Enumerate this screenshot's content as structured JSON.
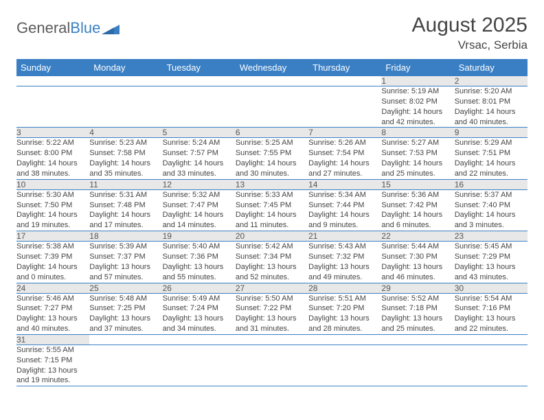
{
  "brand": {
    "part1": "General",
    "part2": "Blue"
  },
  "title": "August 2025",
  "location": "Vrsac, Serbia",
  "colors": {
    "accent": "#3a7fc4",
    "headerText": "#ffffff",
    "dayBg": "#e8e8e8",
    "text": "#444"
  },
  "weekdays": [
    "Sunday",
    "Monday",
    "Tuesday",
    "Wednesday",
    "Thursday",
    "Friday",
    "Saturday"
  ],
  "weeks": [
    [
      null,
      null,
      null,
      null,
      null,
      {
        "n": "1",
        "sr": "5:19 AM",
        "ss": "8:02 PM",
        "dl": "14 hours and 42 minutes."
      },
      {
        "n": "2",
        "sr": "5:20 AM",
        "ss": "8:01 PM",
        "dl": "14 hours and 40 minutes."
      }
    ],
    [
      {
        "n": "3",
        "sr": "5:22 AM",
        "ss": "8:00 PM",
        "dl": "14 hours and 38 minutes."
      },
      {
        "n": "4",
        "sr": "5:23 AM",
        "ss": "7:58 PM",
        "dl": "14 hours and 35 minutes."
      },
      {
        "n": "5",
        "sr": "5:24 AM",
        "ss": "7:57 PM",
        "dl": "14 hours and 33 minutes."
      },
      {
        "n": "6",
        "sr": "5:25 AM",
        "ss": "7:55 PM",
        "dl": "14 hours and 30 minutes."
      },
      {
        "n": "7",
        "sr": "5:26 AM",
        "ss": "7:54 PM",
        "dl": "14 hours and 27 minutes."
      },
      {
        "n": "8",
        "sr": "5:27 AM",
        "ss": "7:53 PM",
        "dl": "14 hours and 25 minutes."
      },
      {
        "n": "9",
        "sr": "5:29 AM",
        "ss": "7:51 PM",
        "dl": "14 hours and 22 minutes."
      }
    ],
    [
      {
        "n": "10",
        "sr": "5:30 AM",
        "ss": "7:50 PM",
        "dl": "14 hours and 19 minutes."
      },
      {
        "n": "11",
        "sr": "5:31 AM",
        "ss": "7:48 PM",
        "dl": "14 hours and 17 minutes."
      },
      {
        "n": "12",
        "sr": "5:32 AM",
        "ss": "7:47 PM",
        "dl": "14 hours and 14 minutes."
      },
      {
        "n": "13",
        "sr": "5:33 AM",
        "ss": "7:45 PM",
        "dl": "14 hours and 11 minutes."
      },
      {
        "n": "14",
        "sr": "5:34 AM",
        "ss": "7:44 PM",
        "dl": "14 hours and 9 minutes."
      },
      {
        "n": "15",
        "sr": "5:36 AM",
        "ss": "7:42 PM",
        "dl": "14 hours and 6 minutes."
      },
      {
        "n": "16",
        "sr": "5:37 AM",
        "ss": "7:40 PM",
        "dl": "14 hours and 3 minutes."
      }
    ],
    [
      {
        "n": "17",
        "sr": "5:38 AM",
        "ss": "7:39 PM",
        "dl": "14 hours and 0 minutes."
      },
      {
        "n": "18",
        "sr": "5:39 AM",
        "ss": "7:37 PM",
        "dl": "13 hours and 57 minutes."
      },
      {
        "n": "19",
        "sr": "5:40 AM",
        "ss": "7:36 PM",
        "dl": "13 hours and 55 minutes."
      },
      {
        "n": "20",
        "sr": "5:42 AM",
        "ss": "7:34 PM",
        "dl": "13 hours and 52 minutes."
      },
      {
        "n": "21",
        "sr": "5:43 AM",
        "ss": "7:32 PM",
        "dl": "13 hours and 49 minutes."
      },
      {
        "n": "22",
        "sr": "5:44 AM",
        "ss": "7:30 PM",
        "dl": "13 hours and 46 minutes."
      },
      {
        "n": "23",
        "sr": "5:45 AM",
        "ss": "7:29 PM",
        "dl": "13 hours and 43 minutes."
      }
    ],
    [
      {
        "n": "24",
        "sr": "5:46 AM",
        "ss": "7:27 PM",
        "dl": "13 hours and 40 minutes."
      },
      {
        "n": "25",
        "sr": "5:48 AM",
        "ss": "7:25 PM",
        "dl": "13 hours and 37 minutes."
      },
      {
        "n": "26",
        "sr": "5:49 AM",
        "ss": "7:24 PM",
        "dl": "13 hours and 34 minutes."
      },
      {
        "n": "27",
        "sr": "5:50 AM",
        "ss": "7:22 PM",
        "dl": "13 hours and 31 minutes."
      },
      {
        "n": "28",
        "sr": "5:51 AM",
        "ss": "7:20 PM",
        "dl": "13 hours and 28 minutes."
      },
      {
        "n": "29",
        "sr": "5:52 AM",
        "ss": "7:18 PM",
        "dl": "13 hours and 25 minutes."
      },
      {
        "n": "30",
        "sr": "5:54 AM",
        "ss": "7:16 PM",
        "dl": "13 hours and 22 minutes."
      }
    ],
    [
      {
        "n": "31",
        "sr": "5:55 AM",
        "ss": "7:15 PM",
        "dl": "13 hours and 19 minutes."
      },
      null,
      null,
      null,
      null,
      null,
      null
    ]
  ],
  "labels": {
    "sunrise": "Sunrise: ",
    "sunset": "Sunset: ",
    "daylight": "Daylight: "
  }
}
